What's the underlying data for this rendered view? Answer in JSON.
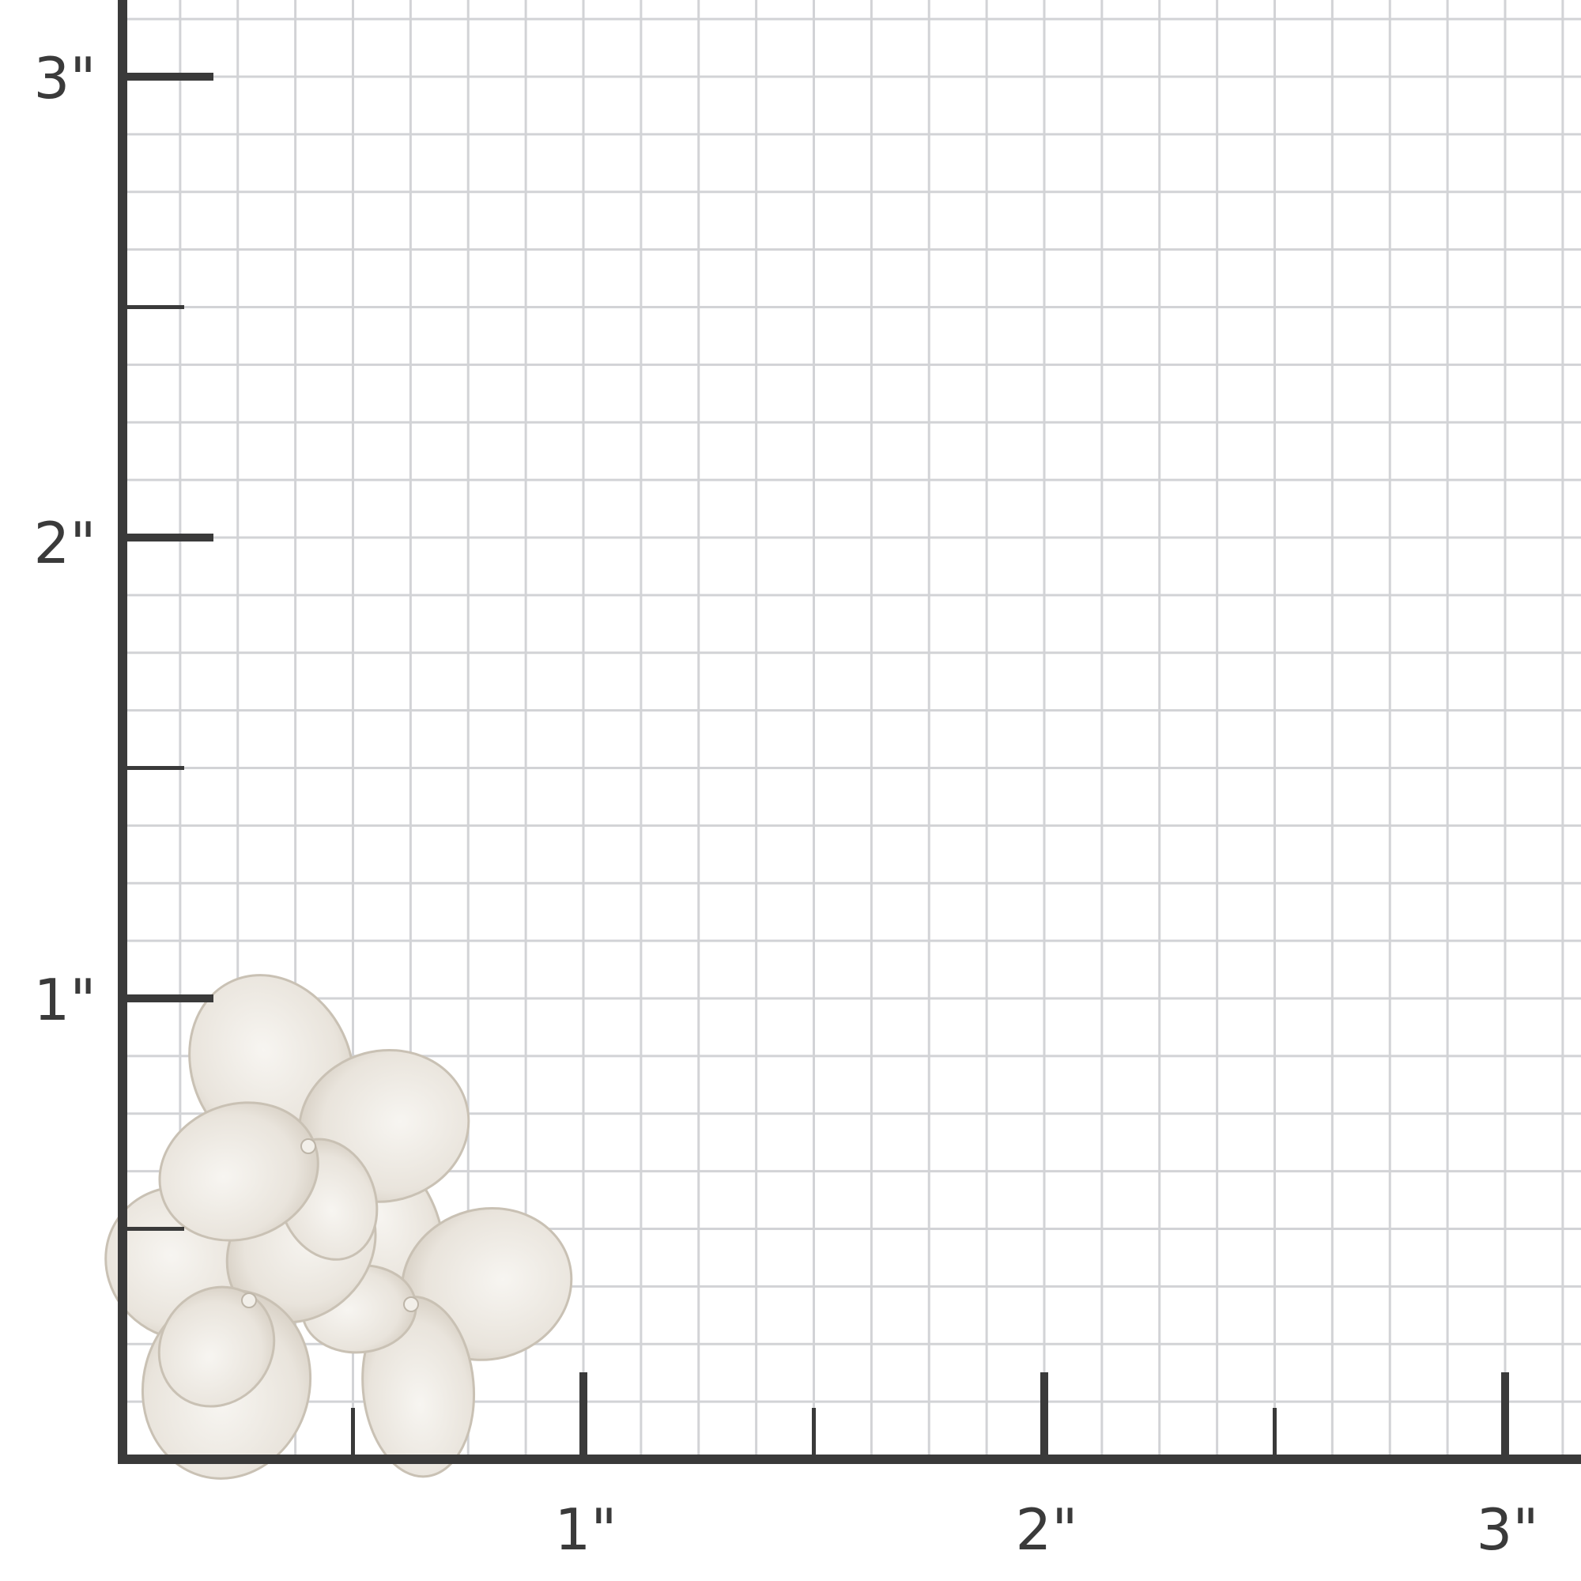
{
  "unit": "inch",
  "colors": {
    "axis": "#3a3a3a",
    "grid": "#d2d3d6",
    "background": "#ffffff",
    "petal": "#e9e4dc",
    "petal_shade": "#d3cbbf"
  },
  "x_axis": {
    "tick_labels": [
      "1\"",
      "2\"",
      "3\""
    ],
    "range": [
      0,
      3.1
    ],
    "minor_step": 0.125
  },
  "y_axis": {
    "tick_labels": [
      "1\"",
      "2\"",
      "3\""
    ],
    "range": [
      0,
      3.15
    ],
    "minor_step": 0.125
  },
  "object": {
    "name": "flower-earring-icon"
  }
}
